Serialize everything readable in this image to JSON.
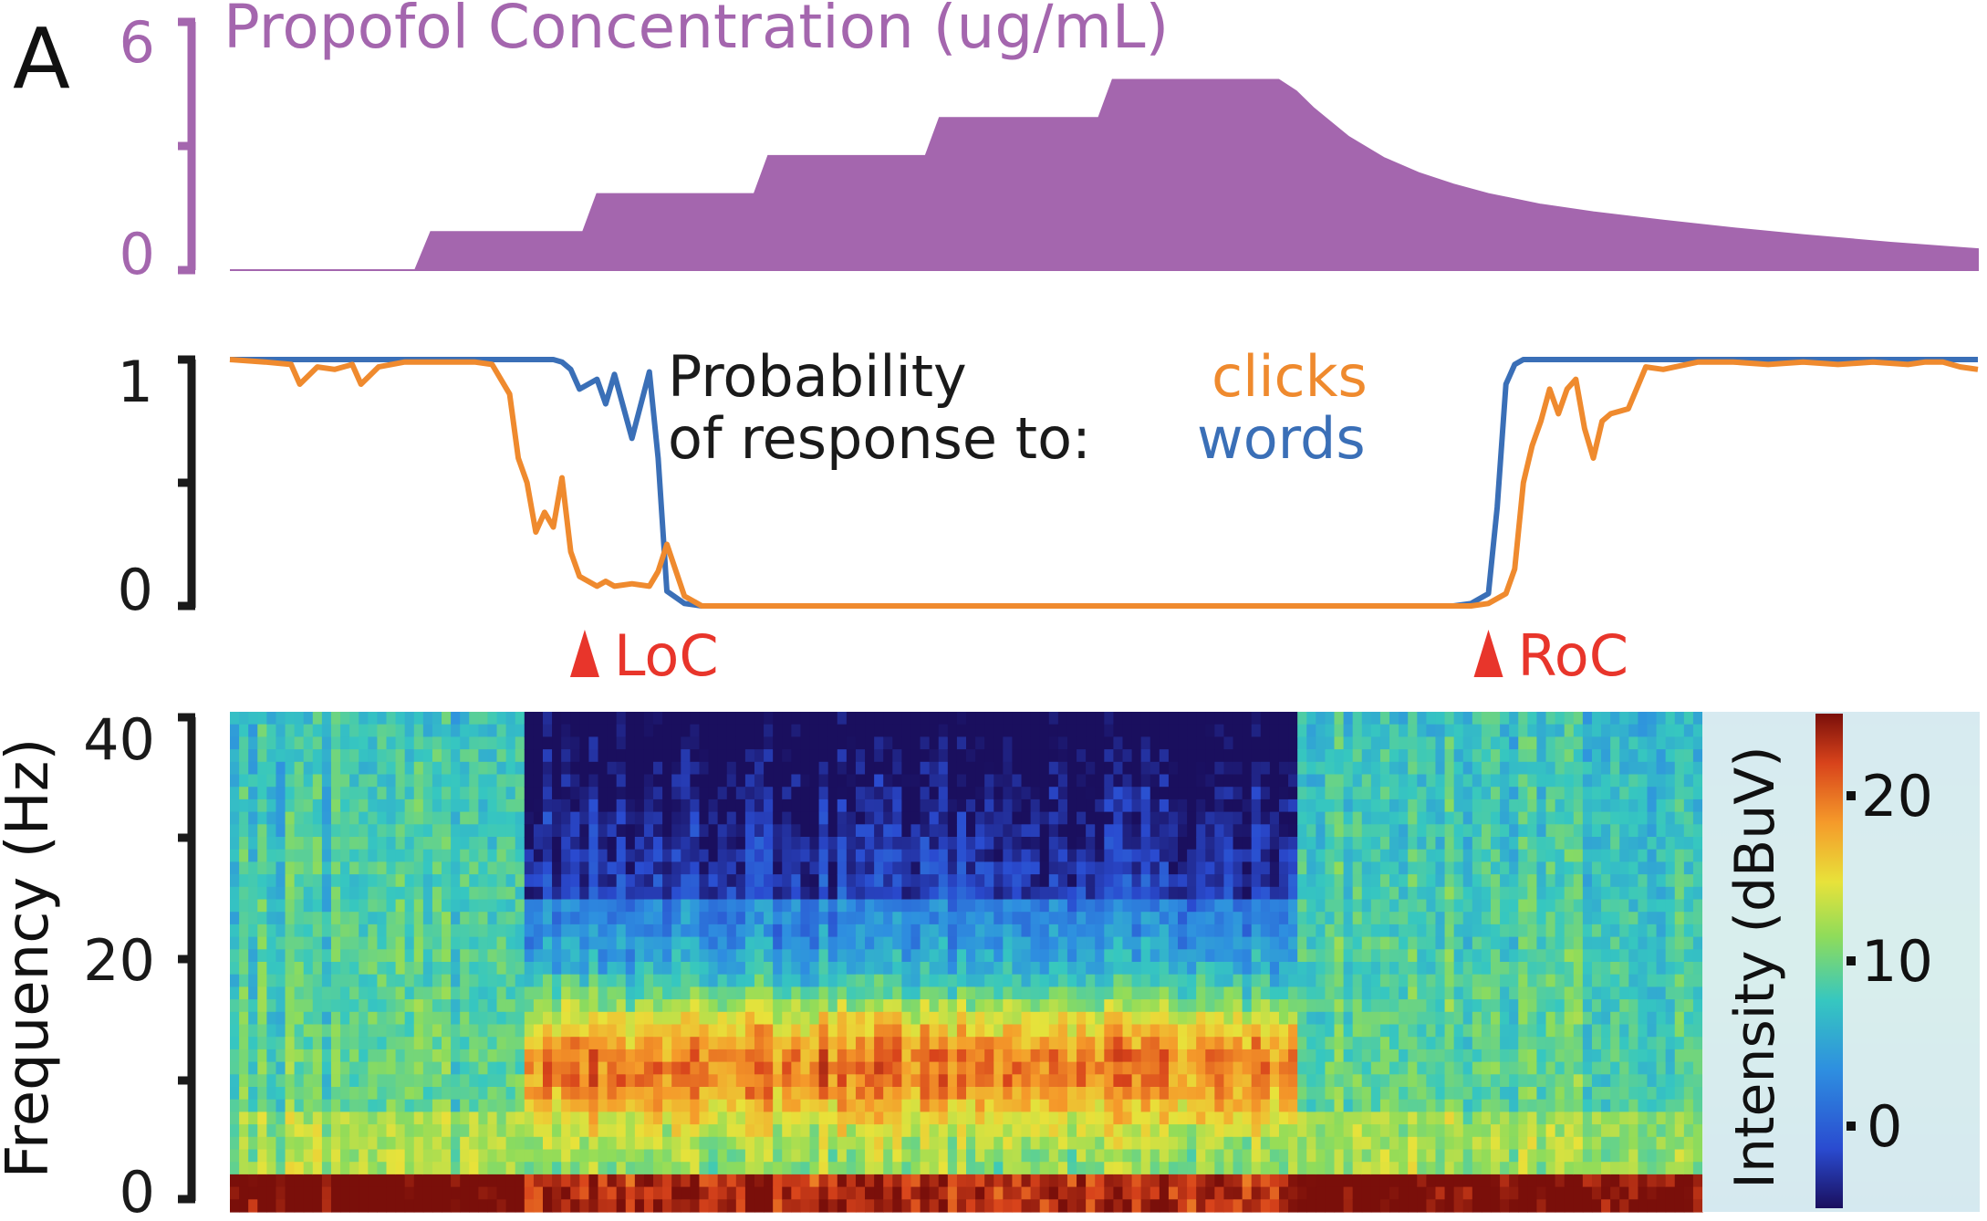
{
  "panel_label": "A",
  "colors": {
    "propofol": "#a466ae",
    "clicks": "#ef8a2e",
    "words": "#3a6fb7",
    "marker": "#e8352b",
    "axis": "#1a1a1a"
  },
  "chart_data": [
    {
      "type": "area",
      "title": "Propofol Concentration (ug/mL)",
      "ylim": [
        0,
        6
      ],
      "ytick_labels": [
        "6",
        "0"
      ],
      "grid": false,
      "x": [
        0,
        0.106,
        0.115,
        0.202,
        0.21,
        0.3,
        0.308,
        0.398,
        0.406,
        0.497,
        0.505,
        0.6,
        0.61,
        0.62,
        0.64,
        0.66,
        0.68,
        0.7,
        0.72,
        0.75,
        0.78,
        0.82,
        0.86,
        0.9,
        0.95,
        1.0
      ],
      "values": [
        0,
        0,
        1.0,
        1.0,
        2.0,
        2.0,
        3.0,
        3.0,
        4.0,
        4.0,
        5.0,
        5.0,
        4.7,
        4.25,
        3.5,
        2.95,
        2.55,
        2.25,
        2.0,
        1.72,
        1.52,
        1.3,
        1.1,
        0.92,
        0.72,
        0.55
      ]
    },
    {
      "type": "line",
      "title": "Probability of response to:",
      "title_lines": [
        "Probability",
        "of response to:"
      ],
      "ylim": [
        0,
        1
      ],
      "ytick_labels": [
        "1",
        "0"
      ],
      "grid": false,
      "legend_placement": "top-center",
      "x": [
        0,
        0.02,
        0.035,
        0.04,
        0.05,
        0.06,
        0.07,
        0.075,
        0.085,
        0.1,
        0.11,
        0.12,
        0.13,
        0.14,
        0.15,
        0.16,
        0.165,
        0.17,
        0.175,
        0.18,
        0.185,
        0.19,
        0.195,
        0.2,
        0.21,
        0.215,
        0.22,
        0.23,
        0.24,
        0.245,
        0.25,
        0.26,
        0.27,
        0.28,
        0.29,
        0.3,
        0.4,
        0.5,
        0.6,
        0.65,
        0.7,
        0.71,
        0.72,
        0.725,
        0.73,
        0.735,
        0.74,
        0.745,
        0.75,
        0.755,
        0.76,
        0.765,
        0.77,
        0.775,
        0.78,
        0.785,
        0.79,
        0.8,
        0.81,
        0.82,
        0.84,
        0.86,
        0.88,
        0.9,
        0.92,
        0.94,
        0.96,
        0.97,
        0.98,
        0.99,
        1.0
      ],
      "series": [
        {
          "name": "clicks",
          "values": [
            1.0,
            0.99,
            0.98,
            0.9,
            0.97,
            0.96,
            0.98,
            0.9,
            0.97,
            0.99,
            0.99,
            0.99,
            0.99,
            0.99,
            0.98,
            0.86,
            0.6,
            0.5,
            0.3,
            0.38,
            0.32,
            0.52,
            0.22,
            0.12,
            0.08,
            0.1,
            0.08,
            0.09,
            0.08,
            0.14,
            0.25,
            0.04,
            0.0,
            0.0,
            0.0,
            0.0,
            0.0,
            0.0,
            0.0,
            0.0,
            0.0,
            0.0,
            0.01,
            0.03,
            0.05,
            0.15,
            0.5,
            0.65,
            0.75,
            0.88,
            0.78,
            0.88,
            0.92,
            0.72,
            0.6,
            0.75,
            0.78,
            0.8,
            0.97,
            0.96,
            0.99,
            0.99,
            0.98,
            0.99,
            0.98,
            0.99,
            0.98,
            0.99,
            0.99,
            0.97,
            0.96
          ]
        },
        {
          "name": "words",
          "values": [
            1.0,
            1.0,
            1.0,
            1.0,
            1.0,
            1.0,
            1.0,
            1.0,
            1.0,
            1.0,
            1.0,
            1.0,
            1.0,
            1.0,
            1.0,
            1.0,
            1.0,
            1.0,
            1.0,
            1.0,
            1.0,
            0.99,
            0.96,
            0.88,
            0.92,
            0.82,
            0.94,
            0.68,
            0.95,
            0.6,
            0.06,
            0.01,
            0.0,
            0.0,
            0.0,
            0.0,
            0.0,
            0.0,
            0.0,
            0.0,
            0.0,
            0.01,
            0.05,
            0.4,
            0.9,
            0.98,
            1.0,
            1.0,
            1.0,
            1.0,
            1.0,
            1.0,
            1.0,
            1.0,
            1.0,
            1.0,
            1.0,
            1.0,
            1.0,
            1.0,
            1.0,
            1.0,
            1.0,
            1.0,
            1.0,
            1.0,
            1.0,
            1.0,
            1.0,
            1.0,
            1.0
          ]
        }
      ],
      "markers": [
        {
          "label": "LoC",
          "x": 0.203
        },
        {
          "label": "RoC",
          "x": 0.72
        }
      ]
    },
    {
      "type": "heatmap",
      "ylabel": "Frequency (Hz)",
      "ylim": [
        0,
        40
      ],
      "ytick_labels": [
        "40",
        "20",
        "0"
      ],
      "ytick_values": [
        40,
        20,
        0
      ],
      "colorbar": {
        "label": "Intensity (dBuV)",
        "ticks": [
          "20",
          "10",
          "0"
        ],
        "tick_values": [
          20,
          10,
          0
        ],
        "range": [
          -5,
          25
        ]
      },
      "bands": [
        {
          "x_start": 0.0,
          "x_end": 0.2,
          "low_freq_power": "high",
          "alpha_power": "low"
        },
        {
          "x_start": 0.2,
          "x_end": 0.72,
          "low_freq_power": "high",
          "alpha_peak_hz": 12,
          "alpha_power": "high"
        },
        {
          "x_start": 0.72,
          "x_end": 1.0,
          "low_freq_power": "high",
          "alpha_power": "low"
        }
      ]
    }
  ]
}
